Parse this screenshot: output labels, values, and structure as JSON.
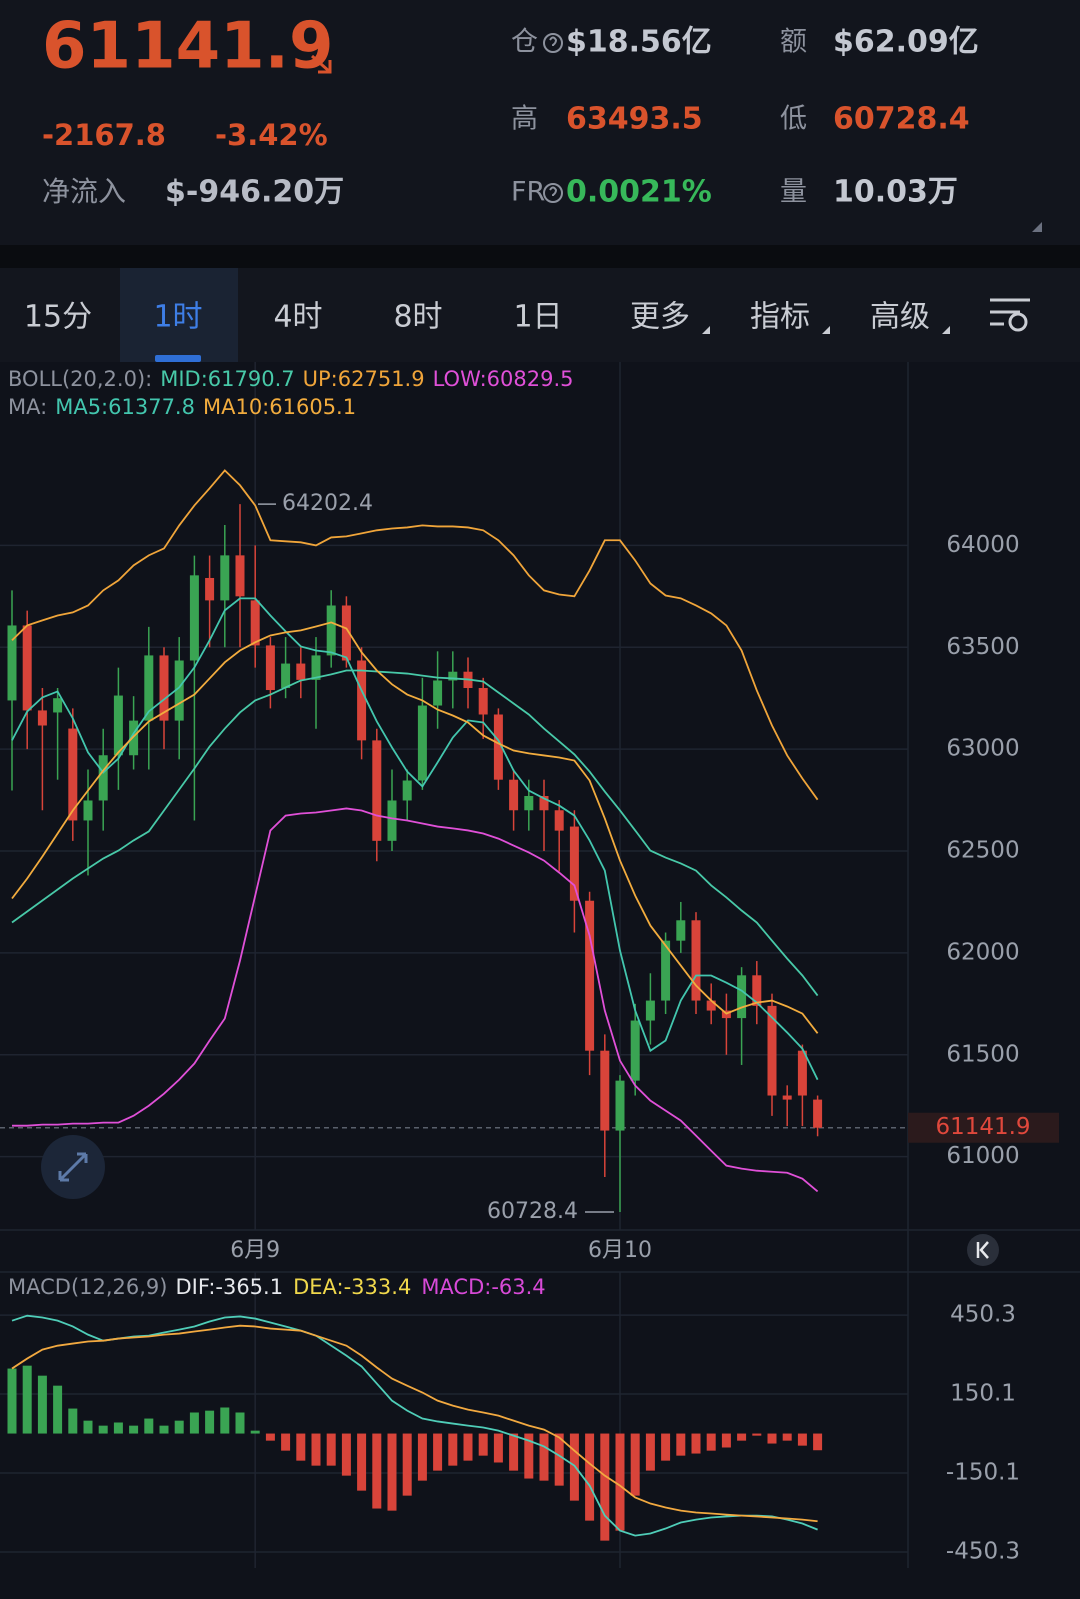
{
  "header": {
    "price": "61141.9",
    "change": "-2167.8",
    "change_pct": "-3.42%",
    "net_inflow_label": "净流入",
    "net_inflow": "$-946.20万",
    "stats": [
      {
        "label": "仓",
        "value": "$18.56亿",
        "color": "#c4c8d1",
        "help_icon": true
      },
      {
        "label": "额",
        "value": "$62.09亿",
        "color": "#c4c8d1"
      },
      {
        "label": "高",
        "value": "63493.5",
        "color": "#d9532c"
      },
      {
        "label": "低",
        "value": "60728.4",
        "color": "#d9532c"
      },
      {
        "label": "FR",
        "value": "0.0021%",
        "color": "#37b85a",
        "help_icon": true
      },
      {
        "label": "量",
        "value": "10.03万",
        "color": "#c4c8d1"
      }
    ]
  },
  "tabs": {
    "items": [
      {
        "label": "15分"
      },
      {
        "label": "1时"
      },
      {
        "label": "4时"
      },
      {
        "label": "8时"
      },
      {
        "label": "1日"
      },
      {
        "label": "更多",
        "dropdown": true
      },
      {
        "label": "指标",
        "dropdown": true
      },
      {
        "label": "高级",
        "dropdown": true
      }
    ],
    "active": 1
  },
  "chart_data": [
    {
      "type": "candlestick",
      "x": [
        null,
        null,
        null,
        null,
        null,
        null,
        null,
        null,
        null,
        null,
        null,
        null,
        null,
        null,
        null,
        null,
        "6月9",
        null,
        null,
        null,
        null,
        null,
        null,
        null,
        null,
        null,
        null,
        null,
        null,
        null,
        null,
        null,
        null,
        null,
        null,
        null,
        null,
        null,
        null,
        null,
        "6月10",
        null,
        null,
        null,
        null,
        null,
        null,
        null,
        null,
        null,
        null,
        null,
        null,
        null
      ],
      "open": [
        63239,
        63607,
        63190,
        63180,
        63101,
        62650,
        62748,
        62970,
        62970,
        63140,
        63460,
        63140,
        63435,
        63840,
        63730,
        63951,
        63730,
        63509,
        63300,
        63420,
        63340,
        63460,
        63705,
        63435,
        63043,
        62550,
        62748,
        62846,
        63214,
        63337,
        63380,
        63300,
        63170,
        62850,
        62700,
        62770,
        62700,
        62620,
        62256,
        61520,
        61128,
        61373,
        61668,
        61766,
        62060,
        62160,
        61766,
        61717,
        61680,
        61890,
        61740,
        61300,
        61520,
        61280
      ],
      "high": [
        63779,
        63680,
        63300,
        63300,
        63200,
        62900,
        63100,
        63400,
        63260,
        63600,
        63500,
        63550,
        63950,
        63950,
        64100,
        64202.4,
        64000,
        63550,
        63550,
        63500,
        63550,
        63780,
        63750,
        63500,
        63100,
        62900,
        62900,
        63350,
        63480,
        63480,
        63450,
        63350,
        63200,
        62900,
        62850,
        62850,
        62750,
        62700,
        62300,
        61600,
        61400,
        61750,
        61900,
        62100,
        62250,
        62200,
        61850,
        61800,
        61930,
        61960,
        61800,
        61350,
        61550,
        61300
      ],
      "low": [
        62797,
        63000,
        62700,
        62850,
        62550,
        62380,
        62600,
        62800,
        62900,
        62900,
        63000,
        62950,
        62650,
        63500,
        63500,
        63500,
        63400,
        63200,
        63250,
        63250,
        63100,
        63400,
        63400,
        62950,
        62450,
        62500,
        62650,
        62800,
        63100,
        63200,
        63200,
        63050,
        62800,
        62600,
        62600,
        62500,
        62400,
        62100,
        61400,
        60900,
        60728.4,
        61300,
        61550,
        61700,
        62000,
        61700,
        61650,
        61500,
        61450,
        61650,
        61200,
        61150,
        61150,
        61100
      ],
      "close": [
        63607,
        63190,
        63116,
        63250,
        62650,
        62748,
        62970,
        63263,
        63140,
        63460,
        63140,
        63435,
        63853,
        63730,
        63951,
        63750,
        63509,
        63290,
        63420,
        63340,
        63460,
        63705,
        63435,
        63043,
        62550,
        62748,
        62846,
        63214,
        63337,
        63380,
        63300,
        63170,
        62850,
        62700,
        62770,
        62700,
        62600,
        62256,
        61520,
        61128,
        61373,
        61668,
        61766,
        62060,
        62160,
        61766,
        61717,
        61680,
        61890,
        61740,
        61300,
        61280,
        61300,
        61141.9
      ],
      "up_color": "#3aa453",
      "down_color": "#d8443a",
      "ylim": [
        60640,
        64900
      ],
      "yticks": [
        61000,
        61500,
        62000,
        62500,
        63000,
        63500,
        64000
      ],
      "grid": true,
      "last_price": 61141.9,
      "max_label": 64202.4,
      "min_label": 60728.4,
      "indicators": [
        {
          "title": "BOLL(20,2.0):",
          "series": [
            {
              "name": "MID:61790.7",
              "color": "#48c9a8",
              "values": [
                62149,
                62203,
                62257,
                62311,
                62365,
                62414,
                62463,
                62502,
                62552,
                62596,
                62699,
                62802,
                62905,
                63013,
                63101,
                63180,
                63239,
                63268,
                63303,
                63337,
                63351,
                63367,
                63386,
                63386,
                63381,
                63376,
                63371,
                63361,
                63351,
                63347,
                63342,
                63332,
                63278,
                63224,
                63170,
                63101,
                63038,
                62974,
                62890,
                62792,
                62699,
                62601,
                62502,
                62468,
                62439,
                62404,
                62331,
                62272,
                62208,
                62149,
                62060,
                61972,
                61889,
                61790.7
              ]
            },
            {
              "name": "UP:62751.9",
              "color": "#f0a53a",
              "values": [
                63534,
                63607,
                63632,
                63656,
                63671,
                63705,
                63779,
                63828,
                63902,
                63951,
                63985,
                64098,
                64196,
                64280,
                64368,
                64295,
                64196,
                64025,
                64020,
                64015,
                64000,
                64039,
                64044,
                64059,
                64074,
                64083,
                64088,
                64098,
                64093,
                64093,
                64088,
                64074,
                64025,
                63951,
                63853,
                63779,
                63759,
                63750,
                63877,
                64025,
                64025,
                63926,
                63813,
                63754,
                63740,
                63705,
                63666,
                63607,
                63484,
                63288,
                63116,
                62969,
                62856,
                62751.9
              ]
            },
            {
              "name": "LOW:60829.5",
              "color": "#e050d8",
              "values": [
                61152,
                61152,
                61157,
                61157,
                61162,
                61162,
                61167,
                61167,
                61201,
                61250,
                61309,
                61378,
                61457,
                61570,
                61678,
                61962,
                62281,
                62601,
                62674,
                62684,
                62689,
                62699,
                62709,
                62699,
                62674,
                62660,
                62650,
                62635,
                62620,
                62611,
                62601,
                62586,
                62561,
                62527,
                62493,
                62453,
                62394,
                62331,
                62085,
                61717,
                61471,
                61349,
                61275,
                61226,
                61177,
                61103,
                61029,
                60956,
                60941,
                60931,
                60926,
                60921,
                60892,
                60829.5
              ]
            }
          ]
        },
        {
          "title": "MA:",
          "series": [
            {
              "name": "MA5:61377.8",
              "color": "#43c6ae",
              "values": [
                63043,
                63185,
                63254,
                63283,
                63151,
                62984,
                62885,
                62954,
                63077,
                63185,
                63244,
                63303,
                63401,
                63534,
                63681,
                63740,
                63740,
                63656,
                63578,
                63504,
                63484,
                63475,
                63450,
                63288,
                63136,
                63008,
                62890,
                62817,
                62935,
                63057,
                63141,
                63131,
                63043,
                62895,
                62797,
                62758,
                62723,
                62674,
                62552,
                62404,
                62011,
                61717,
                61520,
                61570,
                61766,
                61889,
                61889,
                61854,
                61815,
                61756,
                61683,
                61609,
                61530,
                61377.8
              ]
            },
            {
              "name": "MA10:61605.1",
              "color": "#f2ac3e",
              "values": [
                62267,
                62365,
                62473,
                62586,
                62699,
                62797,
                62895,
                62984,
                63062,
                63136,
                63180,
                63224,
                63268,
                63347,
                63426,
                63484,
                63524,
                63558,
                63573,
                63583,
                63602,
                63622,
                63592,
                63475,
                63386,
                63318,
                63268,
                63239,
                63194,
                63165,
                63131,
                63067,
                63028,
                62993,
                62979,
                62969,
                62959,
                62944,
                62846,
                62660,
                62453,
                62281,
                62134,
                62036,
                61938,
                61840,
                61766,
                61702,
                61732,
                61756,
                61766,
                61737,
                61702,
                61605.1
              ]
            }
          ]
        }
      ]
    },
    {
      "type": "macd",
      "title": "MACD(12,26,9)",
      "ylim": [
        -511,
        614
      ],
      "yticks": [
        450.3,
        150.1,
        -150.1,
        -450.3
      ],
      "grid": true,
      "up_color": "#3aa453",
      "down_color": "#d8443a",
      "lines": [
        {
          "name": "DIF:-365.1",
          "color": "#4fcdb8",
          "legend_color": "#e6e8ec",
          "values": [
            429,
            448,
            441,
            429,
            407,
            376,
            353,
            361,
            369,
            372,
            384,
            395,
            407,
            426,
            441,
            445,
            437,
            422,
            407,
            391,
            372,
            334,
            296,
            255,
            190,
            125,
            87,
            57,
            46,
            38,
            30,
            23,
            11,
            -8,
            -27,
            -49,
            -84,
            -122,
            -198,
            -312,
            -369,
            -388,
            -380,
            -361,
            -338,
            -327,
            -319,
            -315,
            -312,
            -312,
            -315,
            -327,
            -342,
            -365.1
          ]
        },
        {
          "name": "DEA:-333.4",
          "color": "#f2a940",
          "legend_color": "#f0d84c",
          "values": [
            247,
            285,
            319,
            334,
            342,
            350,
            353,
            361,
            365,
            369,
            376,
            380,
            388,
            395,
            403,
            410,
            407,
            399,
            395,
            391,
            372,
            353,
            334,
            296,
            251,
            209,
            182,
            156,
            125,
            106,
            91,
            80,
            68,
            49,
            30,
            15,
            -15,
            -65,
            -114,
            -160,
            -198,
            -243,
            -266,
            -281,
            -293,
            -300,
            -304,
            -308,
            -312,
            -315,
            -319,
            -323,
            -327,
            -333.4
          ]
        }
      ],
      "histogram": {
        "name": "MACD:-63.4",
        "legend_color": "#d84ad8",
        "values": [
          247,
          258,
          220,
          182,
          95,
          49,
          30,
          42,
          30,
          57,
          30,
          49,
          80,
          87,
          99,
          80,
          11,
          -27,
          -65,
          -103,
          -122,
          -122,
          -160,
          -217,
          -285,
          -293,
          -236,
          -179,
          -141,
          -122,
          -103,
          -84,
          -110,
          -141,
          -171,
          -179,
          -198,
          -255,
          -331,
          -407,
          -369,
          -236,
          -141,
          -103,
          -84,
          -76,
          -65,
          -53,
          -27,
          -8,
          -38,
          -27,
          -46,
          -63.4
        ]
      }
    }
  ]
}
